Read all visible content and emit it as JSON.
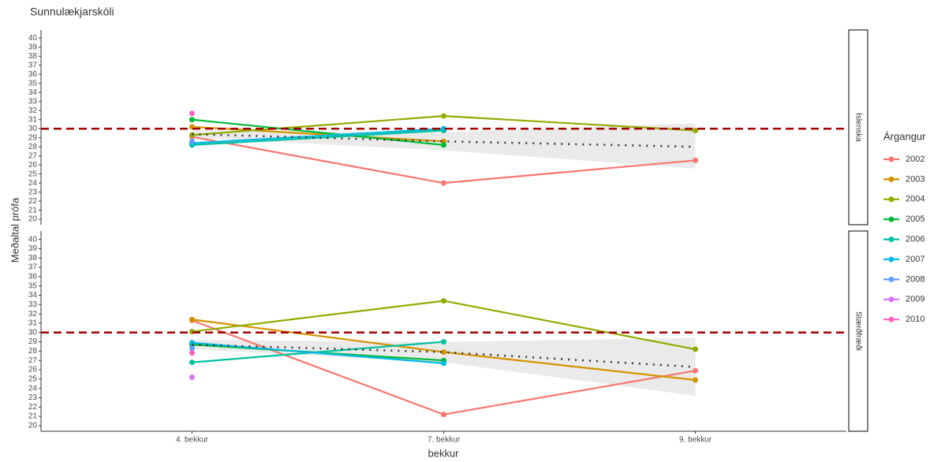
{
  "chart_data": {
    "type": "line",
    "title": "Sunnulækjarskóli",
    "x_label": "bekkur",
    "y_label": "Meðaltal prófa",
    "legend_title": "Árgangur",
    "categories": [
      "4. bekkur",
      "7. bekkur",
      "9. bekkur"
    ],
    "ylim": [
      19.4,
      40.9
    ],
    "yticks": [
      20,
      21,
      22,
      23,
      24,
      25,
      26,
      27,
      28,
      29,
      30,
      31,
      32,
      33,
      34,
      35,
      36,
      37,
      38,
      39,
      40
    ],
    "hline": 30,
    "hline_color": "#a50000",
    "trend_color": "#333333",
    "ribbon_color": "#e6e6e6",
    "series": [
      {
        "name": "2002",
        "color": "#F8766D"
      },
      {
        "name": "2003",
        "color": "#D39200"
      },
      {
        "name": "2004",
        "color": "#93AA00"
      },
      {
        "name": "2005",
        "color": "#00BA38"
      },
      {
        "name": "2006",
        "color": "#00C19F"
      },
      {
        "name": "2007",
        "color": "#00B9E3"
      },
      {
        "name": "2008",
        "color": "#619CFF"
      },
      {
        "name": "2009",
        "color": "#DB72FB"
      },
      {
        "name": "2010",
        "color": "#FF61C3"
      }
    ],
    "facets": [
      {
        "label": "Íslenska",
        "series": [
          {
            "values": [
              29.1,
              24.0,
              26.5
            ]
          },
          {
            "values": [
              30.2,
              28.6,
              null
            ]
          },
          {
            "values": [
              29.3,
              31.4,
              29.8
            ]
          },
          {
            "values": [
              31.0,
              28.2,
              null
            ]
          },
          {
            "values": [
              28.2,
              29.8,
              null
            ]
          },
          {
            "values": [
              28.4,
              30.0,
              null
            ]
          },
          {
            "values": [
              28.6,
              null,
              null
            ]
          },
          {
            "values": [
              null,
              null,
              null
            ]
          },
          {
            "values": [
              31.7,
              null,
              null
            ]
          }
        ],
        "trend": [
          29.4,
          28.6,
          28.0
        ],
        "lower": [
          29.0,
          27.6,
          25.6
        ],
        "upper": [
          29.8,
          29.6,
          30.6
        ]
      },
      {
        "label": "Stærðfræði",
        "series": [
          {
            "values": [
              31.3,
              21.2,
              25.9
            ]
          },
          {
            "values": [
              31.4,
              27.9,
              24.9
            ]
          },
          {
            "values": [
              30.1,
              33.4,
              28.2
            ]
          },
          {
            "values": [
              28.7,
              27.0,
              null
            ]
          },
          {
            "values": [
              26.8,
              29.0,
              null
            ]
          },
          {
            "values": [
              28.9,
              26.7,
              null
            ]
          },
          {
            "values": [
              28.3,
              null,
              null
            ]
          },
          {
            "values": [
              25.2,
              null,
              null
            ]
          },
          {
            "values": [
              27.8,
              null,
              null
            ]
          }
        ],
        "trend": [
          28.7,
          27.9,
          26.3
        ],
        "lower": [
          28.2,
          26.8,
          23.2
        ],
        "upper": [
          29.2,
          29.0,
          29.4
        ]
      }
    ]
  }
}
